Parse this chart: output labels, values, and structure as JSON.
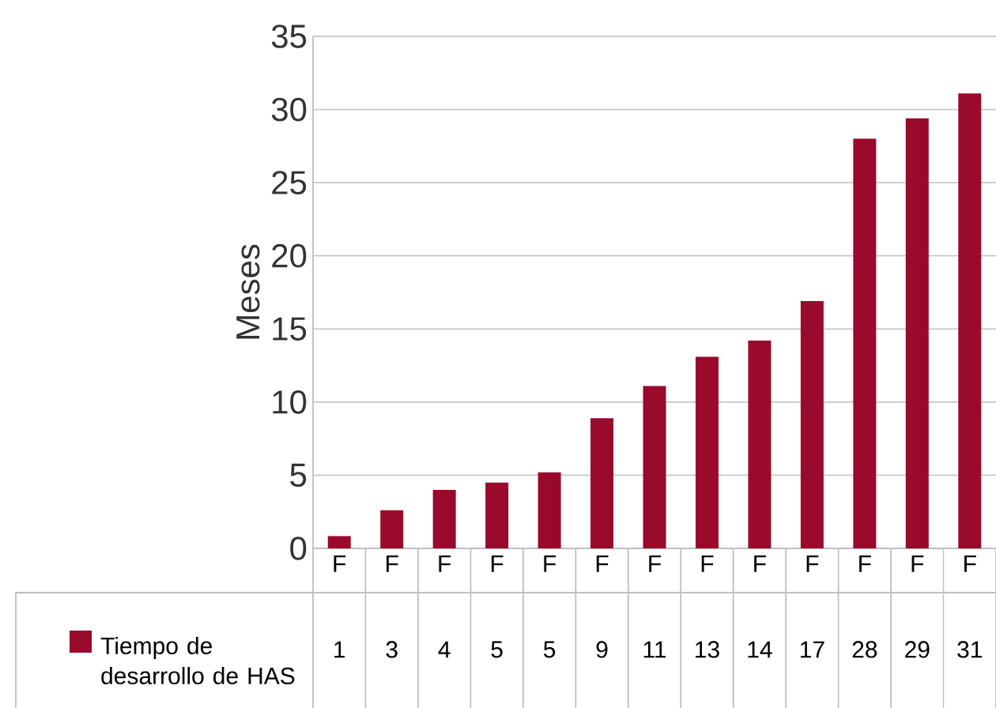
{
  "chart_data": {
    "type": "bar",
    "ylabel": "Meses",
    "categories": [
      "F",
      "F",
      "F",
      "F",
      "F",
      "F",
      "F",
      "F",
      "F",
      "F",
      "F",
      "F",
      "F"
    ],
    "series": [
      {
        "name": "Tiempo de desarrollo de HAS",
        "color": "#990a2c",
        "values": [
          0.84,
          2.6,
          4.0,
          4.5,
          5.2,
          8.9,
          11.1,
          13.1,
          14.2,
          16.9,
          28.0,
          29.4,
          31.1
        ],
        "value_labels": [
          "1",
          "3",
          "4",
          "5",
          "5",
          "9",
          "11",
          "13",
          "14",
          "17",
          "28",
          "29",
          "31"
        ]
      }
    ],
    "ylim": [
      0,
      35
    ],
    "yticks": [
      0,
      5,
      10,
      15,
      20,
      25,
      30,
      35
    ],
    "grid": "y",
    "legend": "bottom left"
  }
}
